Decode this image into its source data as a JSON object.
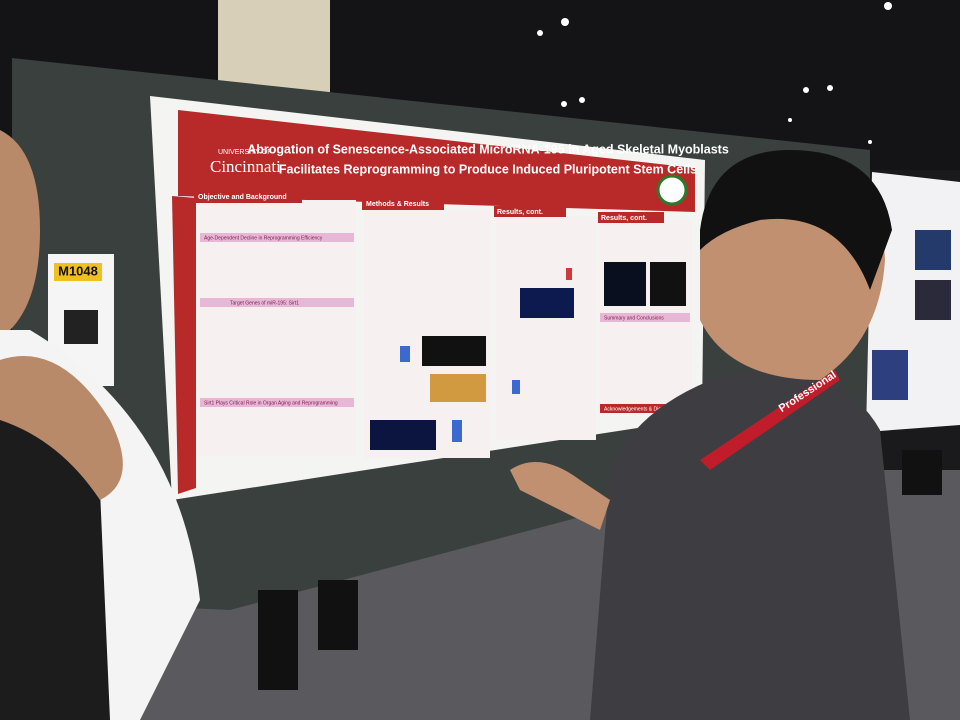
{
  "poster": {
    "title_lines": [
      "Abrogation of Senescence-Associated MicroRNA-195 in Aged Skeletal Myoblasts",
      "Facilitates Reprogramming to Produce Induced Pluripotent Stem Cells"
    ],
    "university": {
      "prefix": "UNIVERSITY OF",
      "name": "Cincinnati"
    },
    "sections": [
      "Objective and Background",
      "Methods & Results",
      "Results, cont.",
      "Results, cont."
    ],
    "subheadings": [
      "Age-Dependent Decline in Reprogramming Efficiency",
      "Target Genes of miR-195: Sirt1",
      "Sirt1 Plays Critical Role in Organ Aging and Reprogramming",
      "Summary and Conclusions",
      "Acknowledgements & Disclosures"
    ]
  },
  "badge": {
    "code": "M1048"
  },
  "lanyard": {
    "text": "Professional"
  }
}
